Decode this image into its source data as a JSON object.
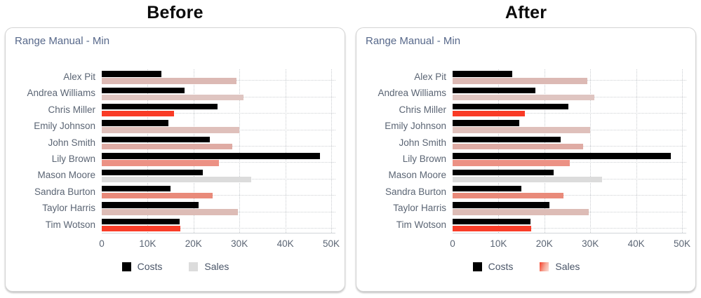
{
  "headings": [
    "Before",
    "After"
  ],
  "text_colors": {
    "title": "#57688a",
    "labels": "#5b6574",
    "legend": "#4a5568"
  },
  "chart_data": [
    {
      "type": "bar",
      "orientation": "horizontal",
      "title": "Range Manual - Min",
      "categories": [
        "Alex Pit",
        "Andrea Williams",
        "Chris Miller",
        "Emily Johnson",
        "John Smith",
        "Lily Brown",
        "Mason Moore",
        "Sandra Burton",
        "Taylor Harris",
        "Tim Wotson"
      ],
      "series": [
        {
          "name": "Costs",
          "color": "#000000",
          "values": [
            13000,
            18000,
            25200,
            14600,
            23500,
            47600,
            22000,
            15000,
            21100,
            16900
          ]
        },
        {
          "name": "Sales",
          "values": [
            29400,
            30900,
            15800,
            29900,
            28500,
            25500,
            32600,
            24200,
            29700,
            17200
          ],
          "colors": [
            "#dcb9b4",
            "#dfc5c1",
            "#f93b26",
            "#dfc0bb",
            "#dfaba4",
            "#ec9184",
            "#dcdcdc",
            "#e98a7a",
            "#ddbcb6",
            "#f93d28"
          ]
        }
      ],
      "x_ticks": [
        "0",
        "10K",
        "20K",
        "30K",
        "40K",
        "50K"
      ],
      "xlim": [
        0,
        50000
      ],
      "grid": "dotted",
      "legend_position": "bottom",
      "legend": [
        {
          "label": "Costs",
          "swatch": "#000000"
        },
        {
          "label": "Sales",
          "swatch": "#dcdcdc"
        }
      ]
    },
    {
      "type": "bar",
      "orientation": "horizontal",
      "title": "Range Manual - Min",
      "categories": [
        "Alex Pit",
        "Andrea Williams",
        "Chris Miller",
        "Emily Johnson",
        "John Smith",
        "Lily Brown",
        "Mason Moore",
        "Sandra Burton",
        "Taylor Harris",
        "Tim Wotson"
      ],
      "series": [
        {
          "name": "Costs",
          "color": "#000000",
          "values": [
            13000,
            18000,
            25200,
            14600,
            23500,
            47600,
            22000,
            15000,
            21100,
            16900
          ]
        },
        {
          "name": "Sales",
          "values": [
            29400,
            30900,
            15800,
            29900,
            28500,
            25500,
            32600,
            24200,
            29700,
            17200
          ],
          "colors": [
            "#dcb9b4",
            "#dfc5c1",
            "#f93b26",
            "#dfc0bb",
            "#dfaba4",
            "#ec9184",
            "#dcdcdc",
            "#e98a7a",
            "#ddbcb6",
            "#f93d28"
          ]
        }
      ],
      "x_ticks": [
        "0",
        "10K",
        "20K",
        "30K",
        "40K",
        "50K"
      ],
      "xlim": [
        0,
        50000
      ],
      "grid": "dotted",
      "legend_position": "bottom",
      "legend": [
        {
          "label": "Costs",
          "swatch": "#000000"
        },
        {
          "label": "Sales",
          "swatch": "linear-gradient(110deg, #f43e28 0%, #f6a999 55%, #fbded8 100%)"
        }
      ]
    }
  ]
}
